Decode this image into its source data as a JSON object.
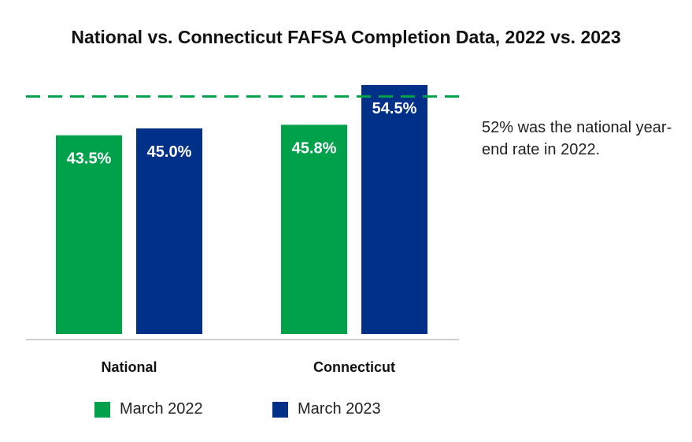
{
  "chart_data": {
    "type": "bar",
    "title": "National vs. Connecticut FAFSA Completion Data, 2022 vs. 2023",
    "categories": [
      "National",
      "Connecticut"
    ],
    "series": [
      {
        "name": "March 2022",
        "values": [
          43.5,
          45.8
        ],
        "labels": [
          "43.5%",
          "45.8%"
        ],
        "color": "#00a14b"
      },
      {
        "name": "March 2023",
        "values": [
          45.0,
          54.5
        ],
        "labels": [
          "45.0%",
          "54.5%"
        ],
        "color": "#003087"
      }
    ],
    "reference_line": {
      "value": 52,
      "color": "#00a14b",
      "style": "dashed"
    },
    "annotation": "52% was the national year-end rate in 2022.",
    "ylim": [
      0,
      60
    ],
    "grid": false,
    "legend_position": "bottom"
  }
}
